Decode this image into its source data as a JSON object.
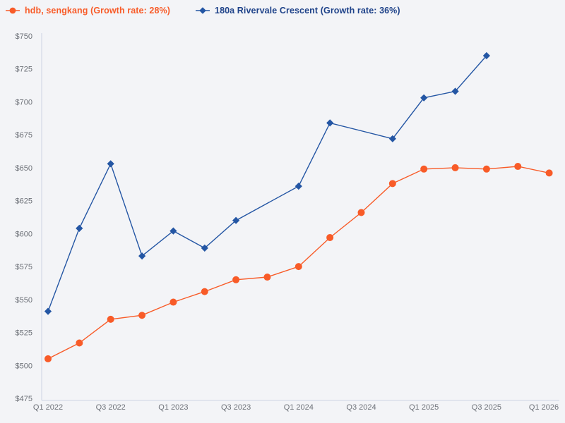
{
  "page": {
    "background": "#f3f4f7",
    "axis_color": "#ccd5e3",
    "tick_text_color": "#6d7178"
  },
  "legend": {
    "items": [
      {
        "label": "hdb, sengkang (Growth rate: 28%)",
        "color": "#f85b28",
        "text_color": "#f85b28",
        "marker": "circle"
      },
      {
        "label": "180a Rivervale Crescent (Growth rate: 36%)",
        "color": "#2456a4",
        "text_color": "#1e4289",
        "marker": "diamond"
      }
    ]
  },
  "chart_data": {
    "type": "line",
    "title": "",
    "xlabel": "",
    "ylabel": "",
    "grid": false,
    "legend_position": "top-left",
    "x_categories": [
      "Q1 2022",
      "Q2 2022",
      "Q3 2022",
      "Q4 2022",
      "Q1 2023",
      "Q2 2023",
      "Q3 2023",
      "Q4 2023",
      "Q1 2024",
      "Q2 2024",
      "Q3 2024",
      "Q4 2024",
      "Q1 2025",
      "Q2 2025",
      "Q3 2025",
      "Q4 2025",
      "Q1 2026"
    ],
    "series": [
      {
        "name": "hdb, sengkang",
        "growth_rate": "28%",
        "color": "#f85b28",
        "marker": "circle",
        "values": [
          505,
          517,
          535,
          538,
          548,
          556,
          565,
          567,
          575,
          597,
          616,
          638,
          649,
          650,
          649,
          651,
          646
        ]
      },
      {
        "name": "180a Rivervale Crescent",
        "growth_rate": "36%",
        "color": "#2456a4",
        "marker": "diamond",
        "values": [
          541,
          604,
          653,
          583,
          602,
          589,
          610,
          null,
          636,
          684,
          null,
          672,
          703,
          708,
          735,
          null,
          null
        ]
      }
    ],
    "y_axis": {
      "min": 475,
      "max": 750,
      "step": 25,
      "tick_prefix": "$",
      "tick_labels": [
        "$750",
        "$725",
        "$700",
        "$675",
        "$650",
        "$625",
        "$600",
        "$575",
        "$550",
        "$525",
        "$500",
        "$475"
      ]
    },
    "x_axis": {
      "tick_every": 2,
      "tick_labels": [
        "Q1 2022",
        "Q3 2022",
        "Q1 2023",
        "Q3 2023",
        "Q1 2024",
        "Q3 2024",
        "Q1 2025",
        "Q3 2025",
        "Q1 2026"
      ]
    }
  }
}
